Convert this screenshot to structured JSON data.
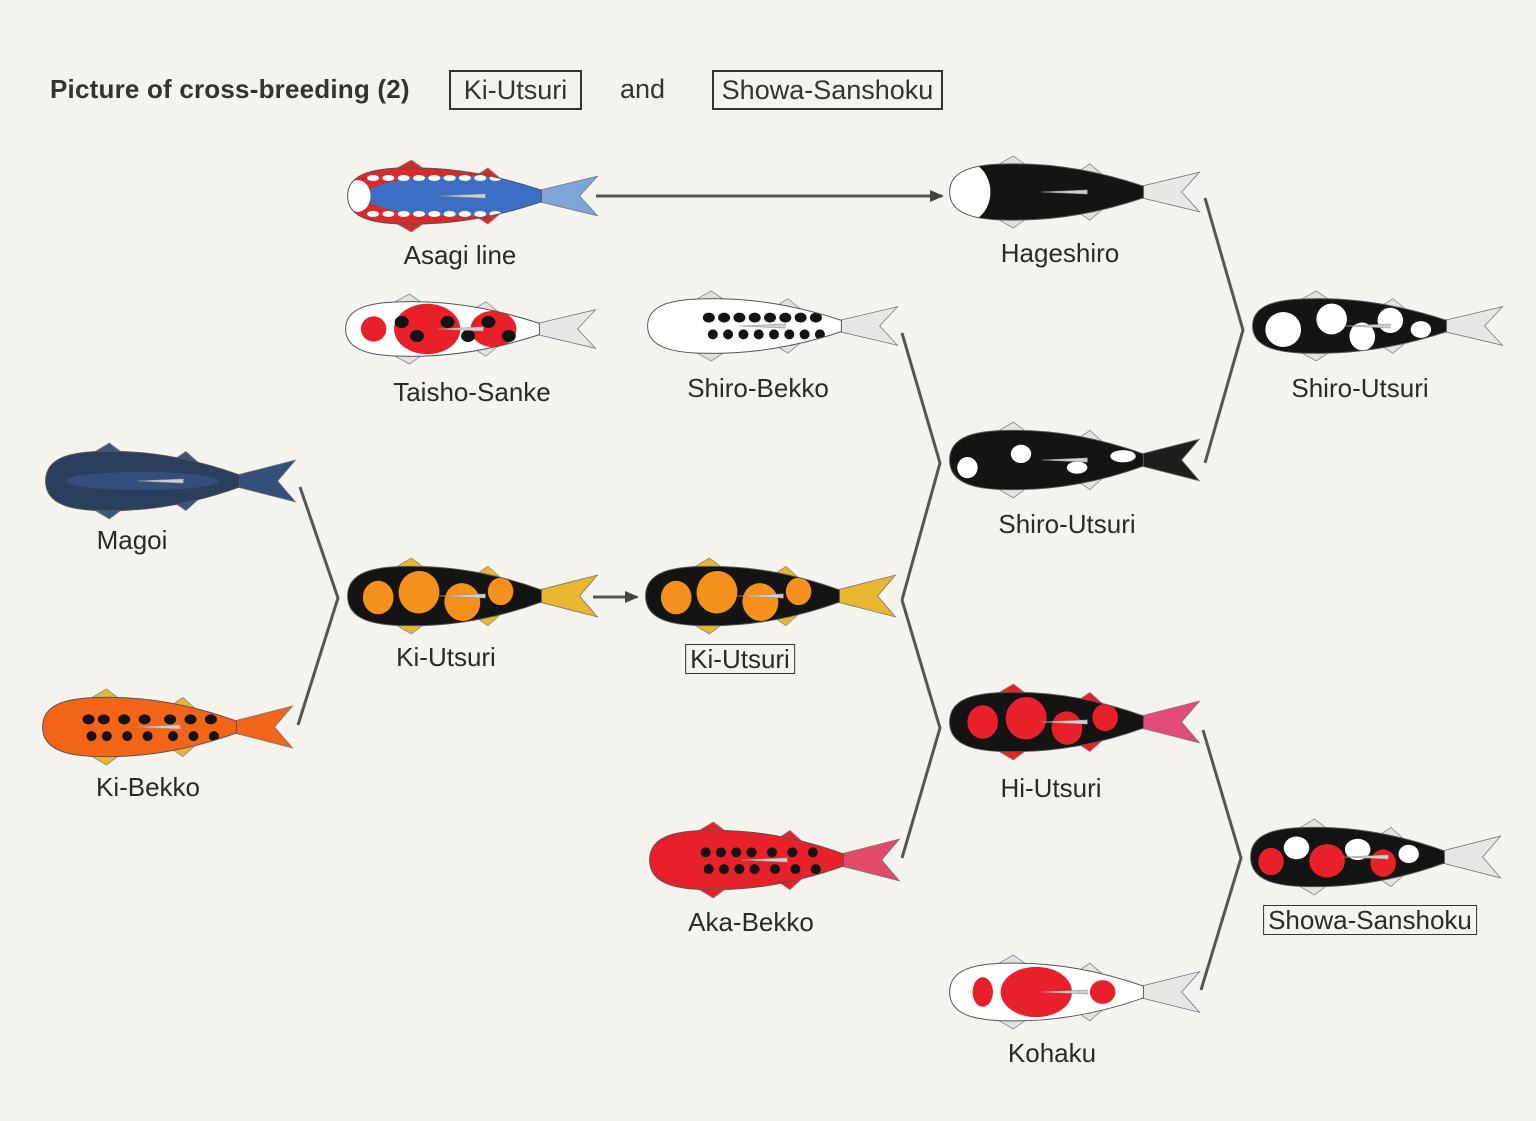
{
  "header": {
    "title": "Picture of cross-breeding (2)",
    "box1": "Ki-Utsuri",
    "and": "and",
    "box2": "Showa-Sanshoku"
  },
  "fish": [
    {
      "id": "asagi",
      "label": "Asagi line",
      "pattern": "asagi"
    },
    {
      "id": "hageshiro",
      "label": "Hageshiro",
      "pattern": "black-white-head"
    },
    {
      "id": "taisho",
      "label": "Taisho-Sanke",
      "pattern": "sanke"
    },
    {
      "id": "shirobekko",
      "label": "Shiro-Bekko",
      "pattern": "white-black-spots"
    },
    {
      "id": "shiroutsuri-final",
      "label": "Shiro-Utsuri",
      "pattern": "white-black-bold"
    },
    {
      "id": "magoi",
      "label": "Magoi",
      "pattern": "navy"
    },
    {
      "id": "shiroutsuri-mid",
      "label": "Shiro-Utsuri",
      "pattern": "black-white"
    },
    {
      "id": "kiutsuri-1",
      "label": "Ki-Utsuri",
      "pattern": "orange-black"
    },
    {
      "id": "kiutsuri-2",
      "label": "Ki-Utsuri",
      "pattern": "orange-black"
    },
    {
      "id": "kibekko",
      "label": "Ki-Bekko",
      "pattern": "orange-black-spots"
    },
    {
      "id": "hiutsuri",
      "label": "Hi-Utsuri",
      "pattern": "red-black"
    },
    {
      "id": "akabekko",
      "label": "Aka-Bekko",
      "pattern": "red-black-spots"
    },
    {
      "id": "showa",
      "label": "Showa-Sanshoku",
      "pattern": "showa"
    },
    {
      "id": "kohaku",
      "label": "Kohaku",
      "pattern": "kohaku"
    }
  ],
  "colors": {
    "background": "#f5f3ee",
    "line": "#555555",
    "black": "#141414",
    "white": "#ffffff",
    "red": "#e8202a",
    "orange": "#f5901c",
    "orange_bright": "#f26417",
    "navy": "#2a3f5e",
    "blue": "#3c6fc4",
    "fin_yellow": "#e8b62f"
  }
}
